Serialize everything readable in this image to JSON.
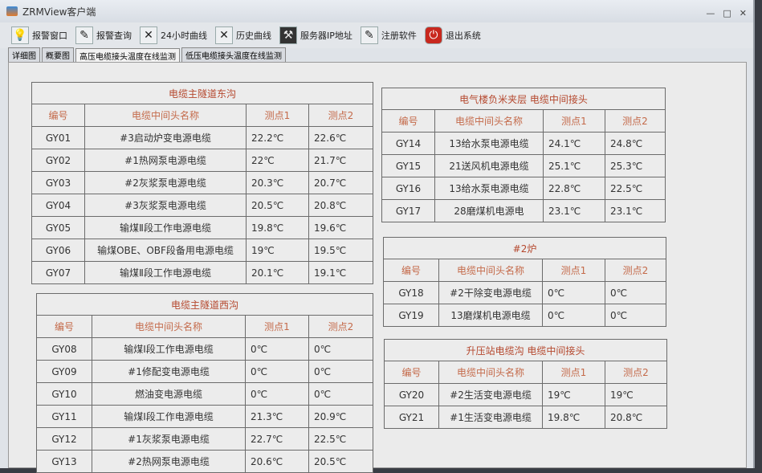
{
  "window": {
    "title": "ZRMView客户端",
    "controls": [
      "—",
      "□",
      "✕"
    ]
  },
  "toolbar": [
    {
      "label": "报警窗口",
      "icon": "lightbulb-icon",
      "glyph": "💡"
    },
    {
      "label": "报警查询",
      "icon": "pencil-icon",
      "glyph": "✎"
    },
    {
      "label": "24小时曲线",
      "icon": "chart-icon",
      "glyph": "✕"
    },
    {
      "label": "历史曲线",
      "icon": "chart-icon",
      "glyph": "✕"
    },
    {
      "label": "服务器IP地址",
      "icon": "tools-icon",
      "glyph": "⚒"
    },
    {
      "label": "注册软件",
      "icon": "pencil-icon",
      "glyph": "✎"
    },
    {
      "label": "退出系统",
      "icon": "power-icon",
      "glyph": "⏻"
    }
  ],
  "tabs": [
    {
      "label": "详细图"
    },
    {
      "label": "概要图"
    },
    {
      "label": "高压电缆接头温度在线监测",
      "active": true
    },
    {
      "label": "低压电缆接头温度在线监测"
    }
  ],
  "headers": [
    "编号",
    "电缆中间头名称",
    "测点1",
    "测点2"
  ],
  "colors": {
    "title": "#b5482e",
    "header": "#c46a4a"
  },
  "tables": [
    {
      "title": "电缆主隧道东沟",
      "rows": [
        [
          "GY01",
          "#3启动炉变电源电缆",
          "22.2℃",
          "22.6℃"
        ],
        [
          "GY02",
          "#1热网泵电源电缆",
          "22℃",
          "21.7℃"
        ],
        [
          "GY03",
          "#2灰浆泵电源电缆",
          "20.3℃",
          "20.7℃"
        ],
        [
          "GY04",
          "#3灰浆泵电源电缆",
          "20.5℃",
          "20.8℃"
        ],
        [
          "GY05",
          "输煤Ⅱ段工作电源电缆",
          "19.8℃",
          "19.6℃"
        ],
        [
          "GY06",
          "输煤OBE、OBF段备用电源电缆",
          "19℃",
          "19.5℃"
        ],
        [
          "GY07",
          "输煤Ⅱ段工作电源电缆",
          "20.1℃",
          "19.1℃"
        ]
      ]
    },
    {
      "title": "电缆主隧道西沟",
      "rows": [
        [
          "GY08",
          "输煤Ⅰ段工作电源电缆",
          "0℃",
          "0℃"
        ],
        [
          "GY09",
          "#1修配变电源电缆",
          "0℃",
          "0℃"
        ],
        [
          "GY10",
          "燃油变电源电缆",
          "0℃",
          "0℃"
        ],
        [
          "GY11",
          "输煤Ⅰ段工作电源电缆",
          "21.3℃",
          "20.9℃"
        ],
        [
          "GY12",
          "#1灰浆泵电源电缆",
          "22.7℃",
          "22.5℃"
        ],
        [
          "GY13",
          "#2热网泵电源电缆",
          "20.6℃",
          "20.5℃"
        ]
      ]
    },
    {
      "title": "电气楼负米夹层 电缆中间接头",
      "rows": [
        [
          "GY14",
          "13给水泵电源电缆",
          "24.1℃",
          "24.8℃"
        ],
        [
          "GY15",
          "21送风机电源电缆",
          "25.1℃",
          "25.3℃"
        ],
        [
          "GY16",
          "13给水泵电源电缆",
          "22.8℃",
          "22.5℃"
        ],
        [
          "GY17",
          "28磨煤机电源电",
          "23.1℃",
          "23.1℃"
        ]
      ]
    },
    {
      "title": "#2炉",
      "rows": [
        [
          "GY18",
          "#2干除变电源电缆",
          "0℃",
          "0℃"
        ],
        [
          "GY19",
          "13磨煤机电源电缆",
          "0℃",
          "0℃"
        ]
      ]
    },
    {
      "title": "升压站电缆沟 电缆中间接头",
      "rows": [
        [
          "GY20",
          "#2生活变电源电缆",
          "19℃",
          "19℃"
        ],
        [
          "GY21",
          "#1生活变电源电缆",
          "19.8℃",
          "20.8℃"
        ]
      ]
    }
  ]
}
